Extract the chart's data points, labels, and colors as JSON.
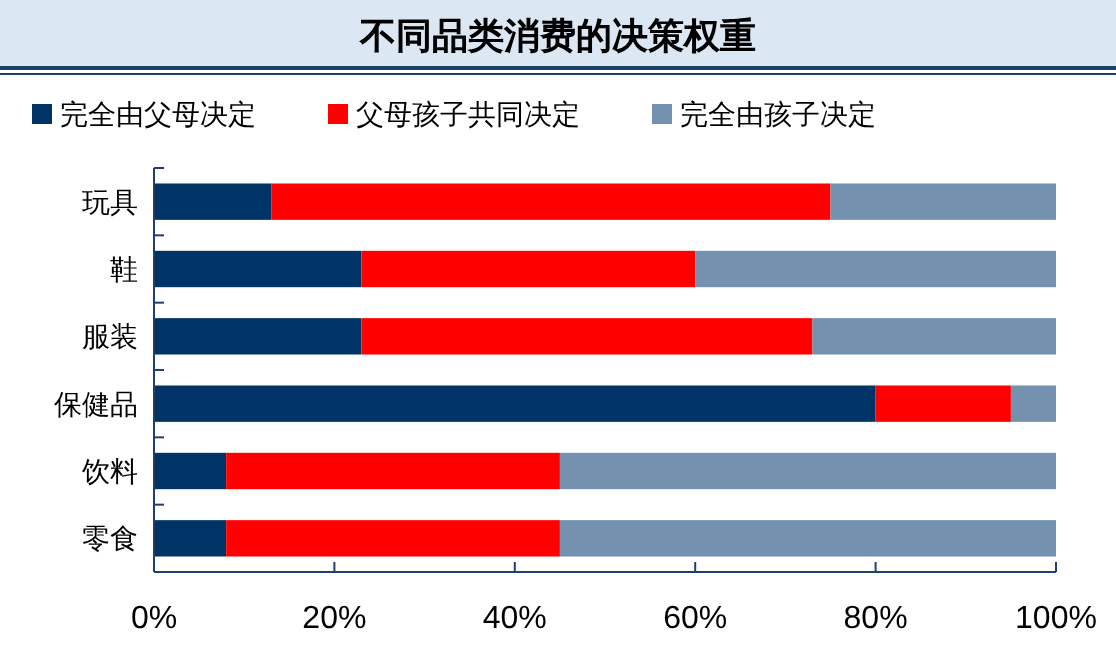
{
  "chart_data": {
    "type": "bar",
    "orientation": "horizontal",
    "stacked": true,
    "title": "不同品类消费的决策权重",
    "categories": [
      "玩具",
      "鞋",
      "服装",
      "保健品",
      "饮料",
      "零食"
    ],
    "series": [
      {
        "name": "完全由父母决定",
        "color": "#003366",
        "values": [
          13,
          23,
          23,
          80,
          8,
          8
        ]
      },
      {
        "name": "父母孩子共同决定",
        "color": "#ff0000",
        "values": [
          62,
          37,
          50,
          15,
          37,
          37
        ]
      },
      {
        "name": "完全由孩子决定",
        "color": "#7491b0",
        "values": [
          25,
          40,
          27,
          5,
          55,
          55
        ]
      }
    ],
    "xlim": [
      0,
      100
    ],
    "xticks": [
      {
        "value": 0,
        "label": "0%"
      },
      {
        "value": 20,
        "label": "20%"
      },
      {
        "value": 40,
        "label": "40%"
      },
      {
        "value": 60,
        "label": "60%"
      },
      {
        "value": 80,
        "label": "80%"
      },
      {
        "value": 100,
        "label": "100%"
      }
    ],
    "legend": "top",
    "grid": false
  }
}
